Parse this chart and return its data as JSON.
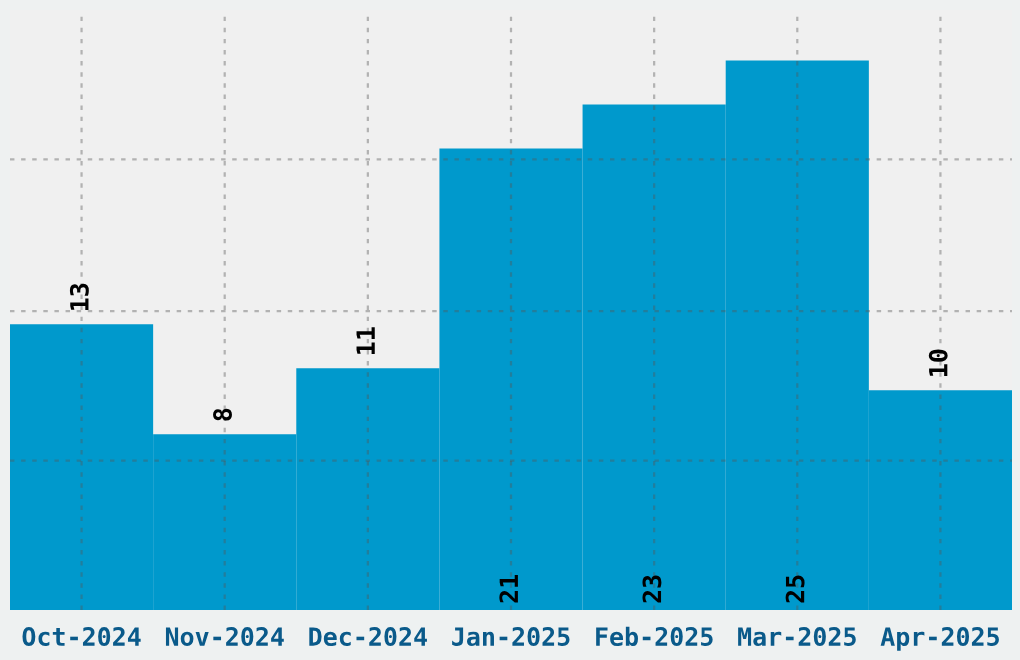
{
  "chart_data": {
    "type": "bar",
    "categories": [
      "Oct-2024",
      "Nov-2024",
      "Dec-2024",
      "Jan-2025",
      "Feb-2025",
      "Mar-2025",
      "Apr-2025"
    ],
    "values": [
      13,
      8,
      11,
      21,
      23,
      25,
      10
    ],
    "color": "#0099cc",
    "ylim": [
      0,
      27.3
    ],
    "yticks": [
      {
        "value": 6.8,
        "label": null
      },
      {
        "value": 13.6,
        "label": null
      },
      {
        "value": 20.5,
        "label": null
      }
    ],
    "tick_labels": "x",
    "grid": true,
    "data_labels": true
  }
}
